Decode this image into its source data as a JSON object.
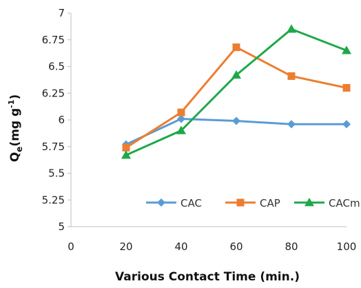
{
  "chart_data": {
    "type": "line",
    "title": "",
    "xlabel": "Various Contact Time (min.)",
    "ylabel_main": "Q",
    "ylabel_sub": "e",
    "ylabel_unit": "(mg g",
    "ylabel_sup": "-1",
    "ylabel_close": ")",
    "xlim": [
      0,
      100
    ],
    "ylim": [
      5,
      7
    ],
    "x_ticks": [
      "0",
      "20",
      "40",
      "60",
      "80",
      "100"
    ],
    "y_ticks": [
      "5",
      "5.25",
      "5.5",
      "5.75",
      "6",
      "6.25",
      "6.5",
      "6.75",
      "7"
    ],
    "grid": false,
    "legend_position": "bottom-right",
    "x": [
      20,
      40,
      60,
      80,
      100
    ],
    "series": [
      {
        "name": "CAC",
        "color": "#5B9BD5",
        "marker": "diamond",
        "values": [
          5.77,
          6.01,
          5.99,
          5.96,
          5.96
        ]
      },
      {
        "name": "CAP",
        "color": "#ED7D31",
        "marker": "square",
        "values": [
          5.74,
          6.07,
          6.68,
          6.41,
          6.3
        ]
      },
      {
        "name": "CACm",
        "color": "#1EA84A",
        "marker": "triangle",
        "values": [
          5.67,
          5.9,
          6.42,
          6.85,
          6.65
        ]
      }
    ]
  }
}
